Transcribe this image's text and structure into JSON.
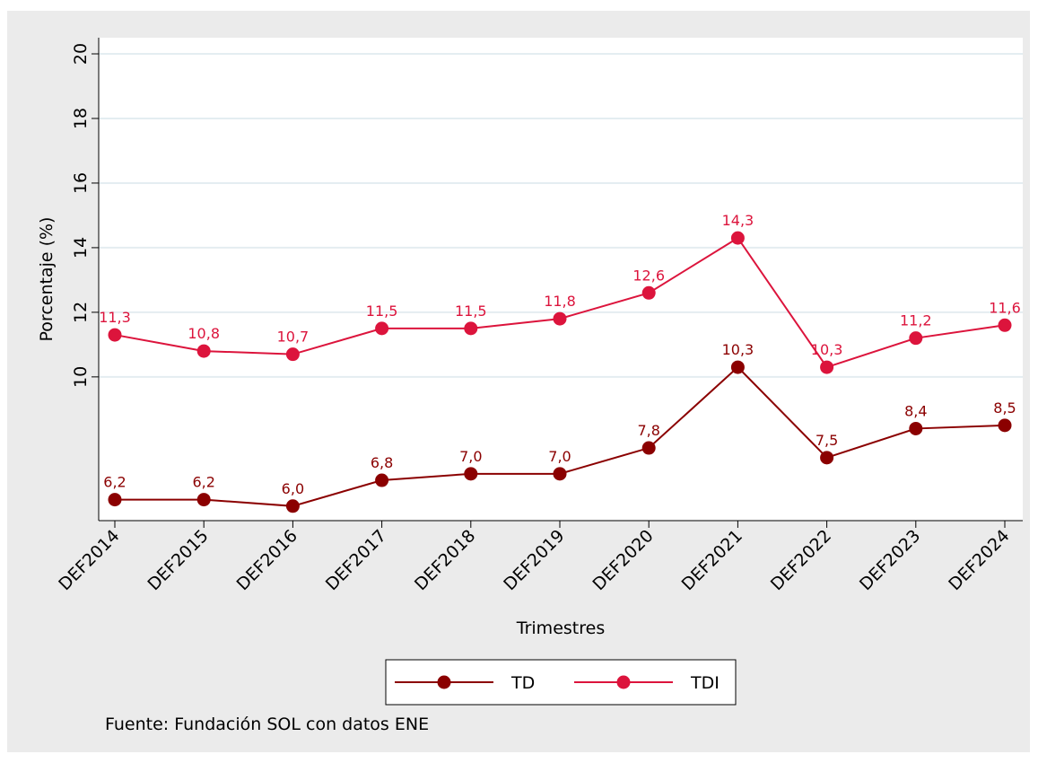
{
  "chart_data": {
    "type": "line",
    "x_label": "Trimestres",
    "y_label": "Porcentaje (%)",
    "note": "Fuente: Fundación SOL con datos ENE",
    "categories": [
      "DEF2014",
      "DEF2015",
      "DEF2016",
      "DEF2017",
      "DEF2018",
      "DEF2019",
      "DEF2020",
      "DEF2021",
      "DEF2022",
      "DEF2023",
      "DEF2024"
    ],
    "series": [
      {
        "name": "TD",
        "color": "#8b0000",
        "values": [
          6.2,
          6.2,
          6.0,
          6.8,
          7.0,
          7.0,
          7.8,
          10.3,
          7.5,
          8.4,
          8.5
        ],
        "value_labels": [
          "6,2",
          "6,2",
          "6,0",
          "6,8",
          "7,0",
          "7,0",
          "7,8",
          "10,3",
          "7,5",
          "8,4",
          "8,5"
        ]
      },
      {
        "name": "TDI",
        "color": "#dc143c",
        "values": [
          11.3,
          10.8,
          10.7,
          11.5,
          11.5,
          11.8,
          12.6,
          14.3,
          10.3,
          11.2,
          11.6
        ],
        "value_labels": [
          "11,3",
          "10,8",
          "10,7",
          "11,5",
          "11,5",
          "11,8",
          "12,6",
          "14,3",
          "10,3",
          "11,2",
          "11,6"
        ]
      }
    ],
    "ylim": [
      5.55,
      20.5
    ],
    "yticks": [
      10,
      12,
      14,
      16,
      18,
      20
    ],
    "grid": true
  }
}
